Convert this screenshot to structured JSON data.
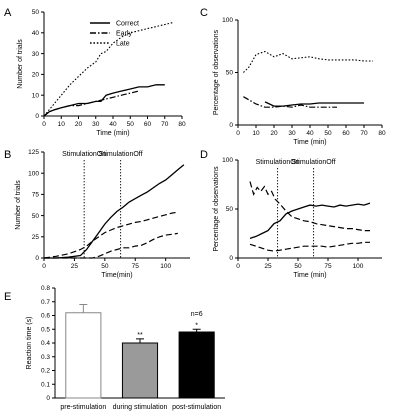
{
  "chart_data": [
    {
      "panel": "A",
      "type": "line",
      "xlabel": "Time (min)",
      "ylabel": "Number of trials",
      "xlim": [
        0,
        80
      ],
      "ylim": [
        0,
        50
      ],
      "xticks": [
        0,
        10,
        20,
        30,
        40,
        50,
        60,
        70,
        80
      ],
      "yticks": [
        0,
        10,
        20,
        30,
        40,
        50
      ],
      "legend": "top-center",
      "series": [
        {
          "name": "Correct",
          "style": "solid",
          "x": [
            0,
            3,
            6,
            10,
            15,
            20,
            25,
            30,
            33,
            36,
            40,
            45,
            50,
            55,
            60,
            65,
            70
          ],
          "y": [
            0,
            2,
            3,
            4,
            5,
            6,
            6,
            7,
            7,
            10,
            11,
            12,
            13,
            14,
            14,
            15,
            15
          ]
        },
        {
          "name": "Early",
          "style": "dashdot",
          "x": [
            0,
            3,
            6,
            10,
            15,
            20,
            25,
            30,
            35,
            40,
            45,
            50,
            55
          ],
          "y": [
            0,
            2,
            3,
            4,
            5,
            5,
            6,
            7,
            8,
            9,
            10,
            11,
            12
          ]
        },
        {
          "name": "Late",
          "style": "dotted",
          "x": [
            0,
            3,
            6,
            10,
            15,
            20,
            25,
            30,
            33,
            36,
            40,
            45,
            50,
            55,
            60,
            65,
            70,
            75
          ],
          "y": [
            0,
            3,
            6,
            10,
            15,
            19,
            23,
            26,
            30,
            31,
            35,
            38,
            40,
            41,
            42,
            43,
            44,
            45
          ]
        }
      ]
    },
    {
      "panel": "B",
      "type": "line",
      "xlabel": "Time(min)",
      "ylabel": "Number of trials",
      "xlim": [
        0,
        120
      ],
      "ylim": [
        0,
        125
      ],
      "xticks": [
        0,
        25,
        50,
        75,
        100
      ],
      "yticks": [
        0,
        25,
        50,
        75,
        100,
        125
      ],
      "annotations": [
        {
          "text": "StimulationOn",
          "x": 33
        },
        {
          "text": "StimulationOff",
          "x": 63
        }
      ],
      "series": [
        {
          "name": "",
          "style": "solid",
          "x": [
            0,
            10,
            20,
            30,
            35,
            40,
            45,
            50,
            55,
            60,
            65,
            70,
            75,
            80,
            85,
            90,
            95,
            100,
            105,
            110,
            115
          ],
          "y": [
            0,
            0,
            1,
            3,
            10,
            20,
            30,
            40,
            48,
            55,
            60,
            66,
            70,
            74,
            78,
            83,
            88,
            92,
            98,
            104,
            110
          ]
        },
        {
          "name": "",
          "style": "dashed",
          "x": [
            0,
            10,
            20,
            30,
            35,
            40,
            45,
            50,
            55,
            60,
            65,
            70,
            75,
            80,
            85,
            90,
            95,
            100,
            105,
            110
          ],
          "y": [
            0,
            2,
            5,
            10,
            14,
            20,
            25,
            30,
            33,
            36,
            38,
            40,
            42,
            43,
            45,
            47,
            49,
            51,
            53,
            54
          ]
        },
        {
          "name": "",
          "style": "dashed",
          "x": [
            0,
            20,
            40,
            45,
            50,
            55,
            60,
            65,
            70,
            75,
            80,
            85,
            90,
            95,
            100,
            105,
            110
          ],
          "y": [
            0,
            0,
            0,
            2,
            5,
            8,
            10,
            12,
            12,
            14,
            15,
            18,
            22,
            25,
            27,
            28,
            29
          ]
        }
      ]
    },
    {
      "panel": "C",
      "type": "line",
      "xlabel": "Time (min)",
      "ylabel": "Percentage of observations",
      "xlim": [
        0,
        80
      ],
      "ylim": [
        0,
        100
      ],
      "xticks": [
        0,
        10,
        20,
        30,
        40,
        50,
        60,
        70,
        80
      ],
      "yticks": [
        0,
        50,
        100
      ],
      "series": [
        {
          "name": "",
          "style": "dotted",
          "x": [
            3,
            6,
            10,
            15,
            20,
            25,
            30,
            35,
            40,
            45,
            50,
            55,
            60,
            65,
            70,
            75
          ],
          "y": [
            50,
            55,
            67,
            70,
            65,
            68,
            63,
            64,
            65,
            63,
            62,
            62,
            62,
            62,
            61,
            61
          ]
        },
        {
          "name": "",
          "style": "solid",
          "x": [
            15,
            20,
            25,
            30,
            35,
            40,
            45,
            50,
            55,
            60,
            65,
            70
          ],
          "y": [
            22,
            18,
            18,
            19,
            20,
            20,
            21,
            21,
            21,
            21,
            21,
            21
          ]
        },
        {
          "name": "",
          "style": "dashdot",
          "x": [
            3,
            6,
            10,
            15,
            20,
            25,
            30,
            35,
            40,
            45,
            50,
            55
          ],
          "y": [
            27,
            24,
            20,
            17,
            17,
            18,
            17,
            19,
            17,
            17,
            17,
            17
          ]
        }
      ]
    },
    {
      "panel": "D",
      "type": "line",
      "xlabel": "Time (min)",
      "ylabel": "Percentage of observations",
      "xlim": [
        0,
        120
      ],
      "ylim": [
        0,
        100
      ],
      "xticks": [
        0,
        25,
        50,
        75,
        100
      ],
      "yticks": [
        0,
        50,
        100
      ],
      "annotations": [
        {
          "text": "StimulationOn",
          "x": 33
        },
        {
          "text": "StimulationOff",
          "x": 63
        }
      ],
      "series": [
        {
          "name": "",
          "style": "dashed",
          "x": [
            10,
            13,
            16,
            19,
            22,
            25,
            28,
            31,
            35,
            40,
            45,
            50,
            55,
            60,
            65,
            70,
            75,
            80,
            85,
            90,
            95,
            100,
            105,
            110
          ],
          "y": [
            78,
            65,
            72,
            68,
            73,
            65,
            68,
            60,
            55,
            48,
            42,
            40,
            38,
            37,
            35,
            34,
            33,
            32,
            31,
            30,
            30,
            29,
            28,
            28
          ]
        },
        {
          "name": "",
          "style": "solid",
          "x": [
            10,
            15,
            20,
            25,
            30,
            35,
            40,
            45,
            50,
            55,
            60,
            65,
            70,
            75,
            80,
            85,
            90,
            95,
            100,
            105,
            110
          ],
          "y": [
            20,
            22,
            25,
            28,
            35,
            38,
            45,
            48,
            50,
            52,
            54,
            53,
            54,
            53,
            52,
            54,
            53,
            54,
            55,
            54,
            56
          ]
        },
        {
          "name": "",
          "style": "dashed",
          "x": [
            10,
            15,
            20,
            25,
            30,
            35,
            40,
            45,
            50,
            55,
            60,
            65,
            70,
            75,
            80,
            85,
            90,
            95,
            100,
            105,
            110
          ],
          "y": [
            14,
            12,
            10,
            8,
            7,
            8,
            9,
            10,
            11,
            12,
            12,
            12,
            12,
            11,
            12,
            13,
            14,
            15,
            15,
            16,
            16
          ]
        }
      ]
    },
    {
      "panel": "E",
      "type": "bar",
      "ylabel": "Reaction time (s)",
      "ylim": [
        0,
        0.8
      ],
      "yticks": [
        0,
        0.1,
        0.2,
        0.3,
        0.4,
        0.5,
        0.6,
        0.7,
        0.8
      ],
      "ytick_labels": [
        "0",
        "0.1",
        "0.2",
        "0.3",
        "0.4",
        "0.5",
        "0.6",
        "0.7",
        "0.8"
      ],
      "categories": [
        "pre-stimulation",
        "during stimulation",
        "post-stimulation"
      ],
      "values": [
        0.62,
        0.4,
        0.48
      ],
      "errors": [
        0.06,
        0.03,
        0.02
      ],
      "significance": [
        "",
        "**",
        "*"
      ],
      "fills": [
        "#ffffff",
        "#9a9a9a",
        "#000000"
      ],
      "note": "n=6"
    }
  ],
  "legend_labels": [
    "Correct",
    "Early",
    "Late"
  ]
}
